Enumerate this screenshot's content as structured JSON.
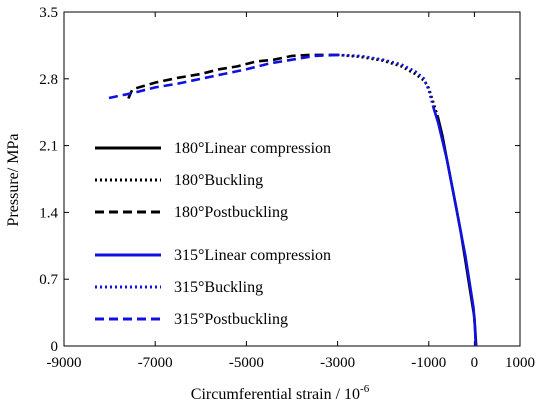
{
  "chart_data": {
    "type": "line",
    "xlabel": "Circumferential strain / 10",
    "xlabel_exponent": "-6",
    "ylabel": "Pressure/ MPa",
    "xlim": [
      -9000,
      1000
    ],
    "ylim": [
      0,
      3.5
    ],
    "xticks": [
      "-9000",
      "-7000",
      "-5000",
      "-3000",
      "-1000",
      "0",
      "1000"
    ],
    "xtick_values": [
      -9000,
      -7000,
      -5000,
      -3000,
      -1000,
      0,
      1000
    ],
    "yticks": [
      "0",
      "0.7",
      "1.4",
      "2.1",
      "2.8",
      "3.5"
    ],
    "ytick_values": [
      0,
      0.7,
      1.4,
      2.1,
      2.8,
      3.5
    ],
    "grid": false,
    "legend_placement": "left",
    "series": [
      {
        "name": "180°Linear compression",
        "color": "#000000",
        "dash": "solid",
        "x": [
          40,
          20,
          0,
          -100,
          -200,
          -300,
          -400,
          -500,
          -600,
          -700,
          -800
        ],
        "y": [
          0.0,
          0.15,
          0.3,
          0.6,
          0.9,
          1.2,
          1.45,
          1.7,
          1.95,
          2.2,
          2.4
        ]
      },
      {
        "name": "180°Buckling",
        "color": "#000000",
        "dash": "dotted",
        "x": [
          -800,
          -900,
          -1000,
          -1100,
          -1300,
          -1600,
          -2000,
          -2500,
          -3000
        ],
        "y": [
          2.4,
          2.55,
          2.7,
          2.78,
          2.85,
          2.93,
          2.99,
          3.03,
          3.05
        ]
      },
      {
        "name": "180°Postbuckling",
        "color": "#000000",
        "dash": "dashed",
        "x": [
          -3000,
          -3600,
          -4000,
          -4400,
          -4800,
          -5200,
          -5600,
          -6000,
          -6500,
          -7000,
          -7500,
          -7600
        ],
        "y": [
          3.05,
          3.05,
          3.04,
          3.0,
          2.98,
          2.93,
          2.9,
          2.85,
          2.81,
          2.76,
          2.69,
          2.58
        ]
      },
      {
        "name": "315°Linear compression",
        "color": "#1010e0",
        "dash": "solid",
        "x": [
          30,
          10,
          -20,
          -100,
          -200,
          -300,
          -400,
          -500,
          -600,
          -700,
          -800,
          -900
        ],
        "y": [
          0.0,
          0.2,
          0.4,
          0.65,
          0.95,
          1.2,
          1.45,
          1.7,
          1.95,
          2.15,
          2.35,
          2.5
        ]
      },
      {
        "name": "315°Buckling",
        "color": "#1010e0",
        "dash": "dotted",
        "x": [
          -900,
          -1000,
          -1100,
          -1300,
          -1600,
          -2000,
          -2500,
          -3000
        ],
        "y": [
          2.5,
          2.68,
          2.8,
          2.88,
          2.95,
          3.0,
          3.04,
          3.05
        ]
      },
      {
        "name": "315°Postbuckling",
        "color": "#1010e0",
        "dash": "dashed",
        "x": [
          -3000,
          -3500,
          -4000,
          -4500,
          -5000,
          -5500,
          -6000,
          -6500,
          -7000,
          -7500,
          -8100
        ],
        "y": [
          3.05,
          3.04,
          3.0,
          2.96,
          2.9,
          2.85,
          2.8,
          2.75,
          2.71,
          2.65,
          2.59
        ]
      }
    ]
  }
}
